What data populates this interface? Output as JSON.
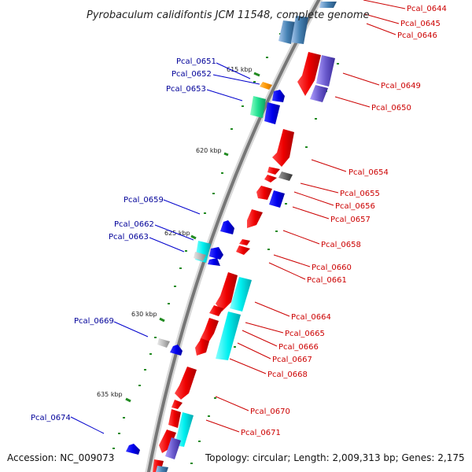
{
  "title": "Pyrobaculum calidifontis JCM 11548, complete genome",
  "accession": "Accession: NC_009073",
  "topology": "Topology: circular; Length: 2,009,313 bp; Genes: 2,175",
  "colors": {
    "forward": "#ff0000",
    "reverse": "#0000ff",
    "label_forward": "#cc0000",
    "label_reverse": "#000099",
    "backbone": "#777777",
    "ticks": "#228b22"
  },
  "scale_ticks": [
    "615 kbp",
    "620 kbp",
    "625 kbp",
    "630 kbp",
    "635 kbp"
  ],
  "labels_forward": [
    "Pcal_0644",
    "Pcal_0645",
    "Pcal_0646",
    "Pcal_0649",
    "Pcal_0650",
    "Pcal_0654",
    "Pcal_0655",
    "Pcal_0656",
    "Pcal_0657",
    "Pcal_0658",
    "Pcal_0660",
    "Pcal_0661",
    "Pcal_0664",
    "Pcal_0665",
    "Pcal_0666",
    "Pcal_0667",
    "Pcal_0668",
    "Pcal_0670",
    "Pcal_0671"
  ],
  "labels_reverse": [
    "Pcal_0651",
    "Pcal_0652",
    "Pcal_0653",
    "Pcal_0659",
    "Pcal_0662",
    "Pcal_0663",
    "Pcal_0669",
    "Pcal_0674"
  ]
}
